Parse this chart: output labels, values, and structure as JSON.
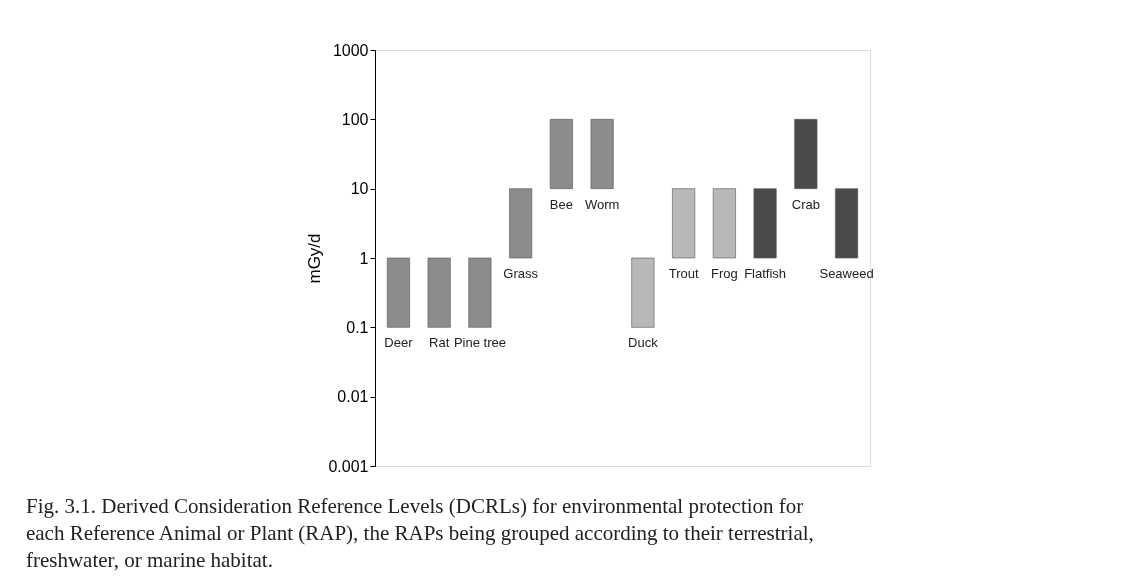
{
  "chart_data": {
    "type": "bar",
    "ylabel": "mGy/d",
    "log": true,
    "categories": [
      "Deer",
      "Rat",
      "Pine tree",
      "Grass",
      "Bee",
      "Worm",
      "Duck",
      "Trout",
      "Frog",
      "Flatfish",
      "Crab",
      "Seaweed"
    ],
    "base": [
      0.1,
      0.1,
      0.1,
      1,
      10,
      10,
      0.1,
      1,
      1,
      1,
      10,
      1
    ],
    "values": [
      0.9,
      0.9,
      0.9,
      9,
      90,
      90,
      0.9,
      9,
      9,
      9,
      90,
      9
    ],
    "colors": [
      "#8c8c8c",
      "#8c8c8c",
      "#8c8c8c",
      "#8c8c8c",
      "#8c8c8c",
      "#8c8c8c",
      "#b8b8b8",
      "#b8b8b8",
      "#b8b8b8",
      "#4a4a4a",
      "#4a4a4a",
      "#4a4a4a"
    ],
    "ylim": [
      0.001,
      1000
    ],
    "yticks": [
      0.001,
      0.01,
      0.1,
      1,
      10,
      100,
      1000
    ],
    "tick_labels": "y",
    "grid": false,
    "legend": false,
    "annotations": [
      "Fig. 3.1.  Derived Consideration Reference Levels (DCRLs) for environmental protection for each Reference Animal or Plant (RAP), the RAPs being grouped according to their terrestrial, freshwater, or marine habitat."
    ]
  }
}
